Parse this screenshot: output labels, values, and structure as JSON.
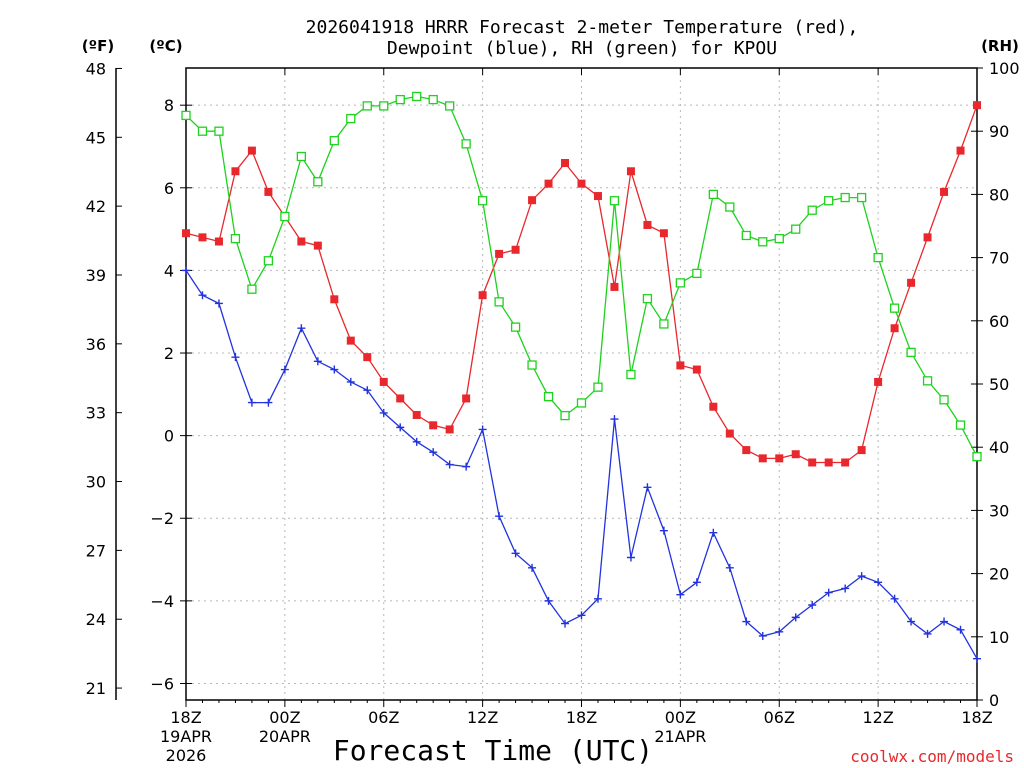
{
  "chart_data": {
    "type": "line",
    "title_line1": "2026041918 HRRR Forecast 2-meter Temperature (red),",
    "title_line2": "Dewpoint (blue), RH (green) for KPOU",
    "xlabel": "Forecast Time (UTC)",
    "credit": "coolwx.com/models",
    "units": {
      "fahrenheit": "(ºF)",
      "celsius": "(ºC)",
      "rh": "(RH)"
    },
    "celsius_axis": {
      "range": [
        -6.4,
        8.9
      ],
      "ticks": [
        "−6",
        "−4",
        "−2",
        "0",
        "2",
        "4",
        "6",
        "8"
      ],
      "tick_values": [
        -6,
        -4,
        -2,
        0,
        2,
        4,
        6,
        8
      ]
    },
    "fahrenheit_ticks": [
      "21",
      "24",
      "27",
      "30",
      "33",
      "36",
      "39",
      "42",
      "45",
      "48"
    ],
    "fahrenheit_tick_values": [
      21,
      24,
      27,
      30,
      33,
      36,
      39,
      42,
      45,
      48
    ],
    "rh_axis": {
      "range": [
        0,
        100
      ],
      "ticks": [
        "0",
        "10",
        "20",
        "30",
        "40",
        "50",
        "60",
        "70",
        "80",
        "90",
        "100"
      ]
    },
    "x_range": [
      0,
      48
    ],
    "x_ticks": [
      {
        "hour": 0,
        "l1": "18Z",
        "l2": "19APR",
        "l3": "2026"
      },
      {
        "hour": 6,
        "l1": "00Z",
        "l2": "20APR",
        "l3": ""
      },
      {
        "hour": 12,
        "l1": "06Z",
        "l2": "",
        "l3": ""
      },
      {
        "hour": 18,
        "l1": "12Z",
        "l2": "",
        "l3": ""
      },
      {
        "hour": 24,
        "l1": "18Z",
        "l2": "",
        "l3": ""
      },
      {
        "hour": 30,
        "l1": "00Z",
        "l2": "21APR",
        "l3": ""
      },
      {
        "hour": 36,
        "l1": "06Z",
        "l2": "",
        "l3": ""
      },
      {
        "hour": 42,
        "l1": "12Z",
        "l2": "",
        "l3": ""
      },
      {
        "hour": 48,
        "l1": "18Z",
        "l2": "",
        "l3": ""
      }
    ],
    "x": [
      0,
      1,
      2,
      3,
      4,
      5,
      6,
      7,
      8,
      9,
      10,
      11,
      12,
      13,
      14,
      15,
      16,
      17,
      18,
      19,
      20,
      21,
      22,
      23,
      24,
      25,
      26,
      27,
      28,
      29,
      30,
      31,
      32,
      33,
      34,
      35,
      36,
      37,
      38,
      39,
      40,
      41,
      42,
      43,
      44,
      45,
      46,
      47,
      48
    ],
    "series": [
      {
        "name": "2-meter Temperature",
        "color": "#e8282c",
        "axis": "celsius",
        "marker": "filled-square",
        "values": [
          4.9,
          4.8,
          4.7,
          6.4,
          6.9,
          5.9,
          5.3,
          4.7,
          4.6,
          3.3,
          2.3,
          1.9,
          1.3,
          0.9,
          0.5,
          0.25,
          0.15,
          0.9,
          3.4,
          4.4,
          4.5,
          5.7,
          6.1,
          6.6,
          6.1,
          5.8,
          3.6,
          6.4,
          5.1,
          4.9,
          1.7,
          1.6,
          0.7,
          0.05,
          -0.35,
          -0.55,
          -0.55,
          -0.45,
          -0.65,
          -0.65,
          -0.65,
          -0.35,
          1.3,
          2.6,
          3.7,
          4.8,
          5.9,
          6.9,
          8.0
        ]
      },
      {
        "name": "Dewpoint",
        "color": "#2233dd",
        "axis": "celsius",
        "marker": "plus",
        "values": [
          4.0,
          3.4,
          3.2,
          1.9,
          0.8,
          0.8,
          1.6,
          2.6,
          1.8,
          1.6,
          1.3,
          1.1,
          0.55,
          0.2,
          -0.15,
          -0.4,
          -0.7,
          -0.75,
          0.15,
          -1.95,
          -2.85,
          -3.2,
          -4.0,
          -4.55,
          -4.35,
          -3.95,
          0.4,
          -2.95,
          -1.25,
          -2.3,
          -3.85,
          -3.55,
          -2.35,
          -3.2,
          -4.5,
          -4.85,
          -4.75,
          -4.4,
          -4.1,
          -3.8,
          -3.7,
          -3.4,
          -3.55,
          -3.95,
          -4.5,
          -4.8,
          -4.5,
          -4.7,
          -5.4
        ]
      },
      {
        "name": "RH",
        "color": "#1ed21e",
        "axis": "rh",
        "marker": "open-square",
        "values": [
          92.5,
          90,
          90,
          73,
          65,
          69.5,
          76.5,
          86,
          82,
          88.5,
          92,
          94,
          94,
          95,
          95.5,
          95,
          94,
          88,
          79,
          63,
          59,
          53,
          48,
          45,
          47,
          49.5,
          79,
          51.5,
          63.5,
          59.5,
          66,
          67.5,
          80,
          78,
          73.5,
          72.5,
          73,
          74.5,
          77.5,
          79,
          79.5,
          79.5,
          70,
          62,
          55,
          50.5,
          47.5,
          43.5,
          38.5
        ]
      }
    ]
  }
}
